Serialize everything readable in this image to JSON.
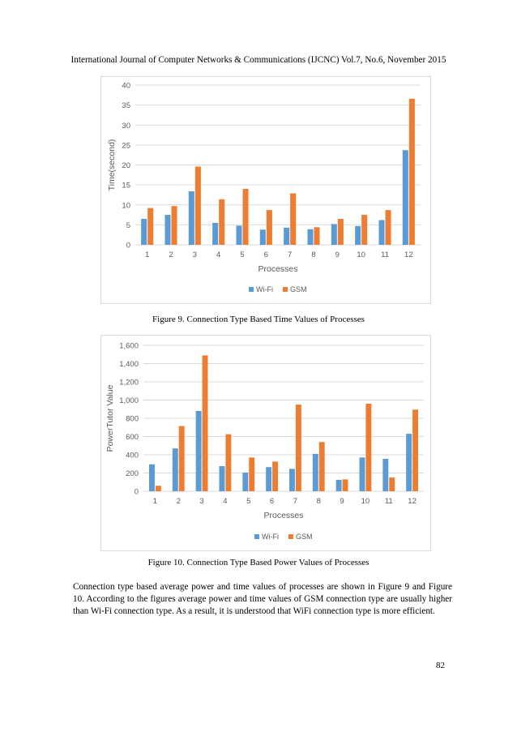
{
  "header": {
    "text": "International Journal of Computer Networks & Communications (IJCNC) Vol.7, No.6, November 2015"
  },
  "figures": [
    {
      "caption": "Figure 9. Connection Type Based Time Values of Processes"
    },
    {
      "caption": "Figure 10. Connection Type Based Power Values of Processes"
    }
  ],
  "body": {
    "paragraph": "Connection type based average power and time values of processes are shown in Figure 9 and Figure 10. According to the figures average power and time values of GSM connection type are usually higher than Wi-Fi connection type. As a result, it is understood that WiFi connection type is more efficient."
  },
  "page_number": "82",
  "colors": {
    "wifi": "#5b9bd5",
    "gsm": "#ed7d31",
    "grid": "#d9d9d9",
    "text": "#595959"
  },
  "chart_data": [
    {
      "type": "bar",
      "title": "",
      "xlabel": "Processes",
      "ylabel": "Time(second)",
      "ylim": [
        0,
        40
      ],
      "yticks": [
        "0",
        "5",
        "10",
        "15",
        "20",
        "25",
        "30",
        "35",
        "40"
      ],
      "categories": [
        "1",
        "2",
        "3",
        "4",
        "5",
        "6",
        "7",
        "8",
        "9",
        "10",
        "11",
        "12"
      ],
      "series": [
        {
          "name": "Wi-Fi",
          "values": [
            6.5,
            7.5,
            13.4,
            5.5,
            4.8,
            3.8,
            4.3,
            3.9,
            5.2,
            4.7,
            6.2,
            23.7
          ]
        },
        {
          "name": "GSM",
          "values": [
            9.2,
            9.7,
            19.6,
            11.4,
            14.0,
            8.7,
            12.9,
            4.4,
            6.5,
            7.5,
            8.7,
            36.6
          ]
        }
      ],
      "grid": true,
      "legend": "bottom"
    },
    {
      "type": "bar",
      "title": "",
      "xlabel": "Processes",
      "ylabel": "PowerTutor Value",
      "ylim": [
        0,
        1600
      ],
      "yticks": [
        "0",
        "200",
        "400",
        "600",
        "800",
        "1,000",
        "1,200",
        "1,400",
        "1,600"
      ],
      "categories": [
        "1",
        "2",
        "3",
        "4",
        "5",
        "6",
        "7",
        "8",
        "9",
        "10",
        "11",
        "12"
      ],
      "series": [
        {
          "name": "Wi-Fi",
          "values": [
            295,
            470,
            880,
            275,
            205,
            265,
            245,
            410,
            125,
            370,
            355,
            630
          ]
        },
        {
          "name": "GSM",
          "values": [
            60,
            715,
            1490,
            625,
            370,
            325,
            950,
            540,
            130,
            960,
            150,
            895
          ]
        }
      ],
      "grid": true,
      "legend": "bottom"
    }
  ]
}
